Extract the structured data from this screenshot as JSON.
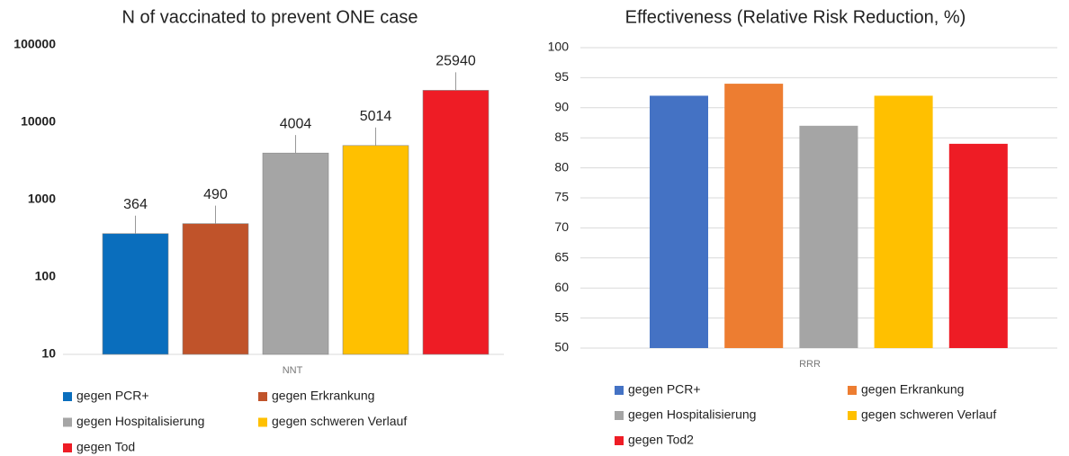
{
  "chart_data": [
    {
      "type": "bar",
      "title": "N of vaccinated to prevent ONE case",
      "categories": [
        "NNT"
      ],
      "series": [
        {
          "name": "gegen PCR+",
          "color": "#0a6ebd",
          "values": [
            364
          ]
        },
        {
          "name": "gegen Erkrankung",
          "color": "#c0532a",
          "values": [
            490
          ]
        },
        {
          "name": "gegen Hospitalisierung",
          "color": "#a5a5a5",
          "values": [
            4004
          ]
        },
        {
          "name": "gegen schweren Verlauf",
          "color": "#ffc000",
          "values": [
            5014
          ]
        },
        {
          "name": "gegen Tod",
          "color": "#ee1c25",
          "values": [
            25940
          ]
        }
      ],
      "ylim": [
        10,
        100000
      ],
      "yticks": [
        10,
        100,
        1000,
        10000,
        100000
      ],
      "log": true,
      "grid": false,
      "data_labels": true
    },
    {
      "type": "bar",
      "title": "Effectiveness (Relative Risk Reduction, %)",
      "categories": [
        "RRR"
      ],
      "series": [
        {
          "name": "gegen PCR+",
          "color": "#4472c4",
          "values": [
            92
          ]
        },
        {
          "name": "gegen Erkrankung",
          "color": "#ed7d31",
          "values": [
            94
          ]
        },
        {
          "name": "gegen Hospitalisierung",
          "color": "#a5a5a5",
          "values": [
            87
          ]
        },
        {
          "name": "gegen schweren Verlauf",
          "color": "#ffc000",
          "values": [
            92
          ]
        },
        {
          "name": "gegen Tod2",
          "color": "#ee1c25",
          "values": [
            84
          ]
        }
      ],
      "ylim": [
        50,
        100
      ],
      "yticks": [
        50,
        55,
        60,
        65,
        70,
        75,
        80,
        85,
        90,
        95,
        100
      ],
      "log": false,
      "grid": true,
      "data_labels": false
    }
  ]
}
